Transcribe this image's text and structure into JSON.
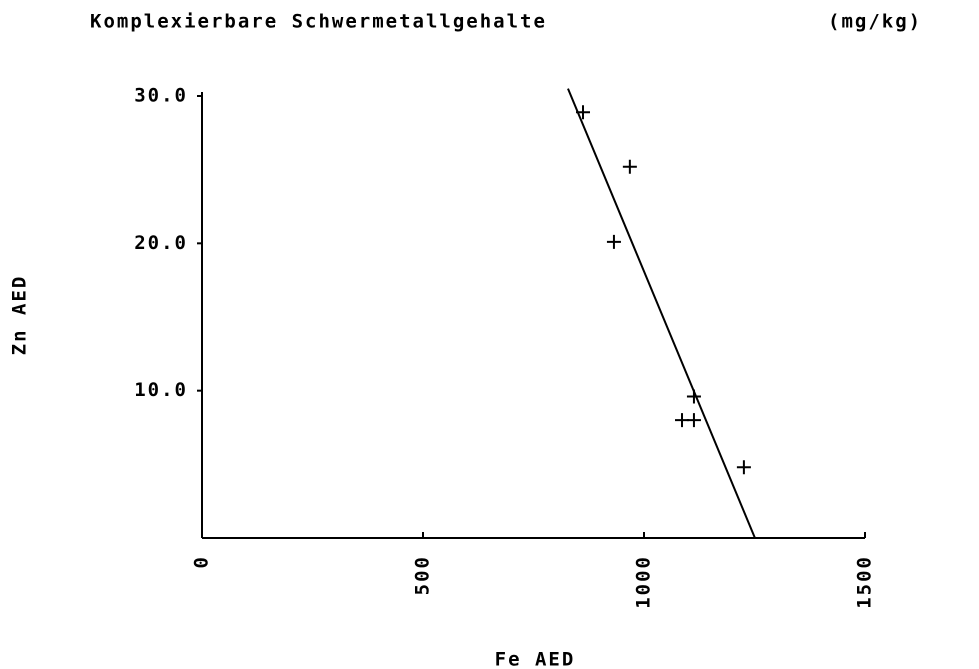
{
  "chart_data": {
    "type": "scatter",
    "title": "Komplexierbare Schwermetallgehalte",
    "unit_label": "(mg/kg)",
    "x_label": "Fe AED",
    "y_label": "Zn AED",
    "series": [
      {
        "x": [
          862,
          968,
          932,
          1113,
          1086,
          1113,
          1226
        ],
        "values": [
          28.9,
          25.2,
          20.1,
          9.6,
          8.0,
          8.0,
          4.8
        ],
        "color": "#000000"
      }
    ],
    "fit": {
      "x": [
        828,
        1251
      ],
      "values": [
        30.5,
        0
      ],
      "color": "#000000"
    },
    "xlim": [
      0,
      1500
    ],
    "ylim": [
      0,
      30
    ],
    "xticks": [
      0,
      500,
      1000,
      1500
    ],
    "yticks": [
      {
        "value": 10,
        "label": "10.0"
      },
      {
        "value": 20,
        "label": "20.0"
      },
      {
        "value": 30,
        "label": "30.0"
      }
    ],
    "grid": false
  }
}
